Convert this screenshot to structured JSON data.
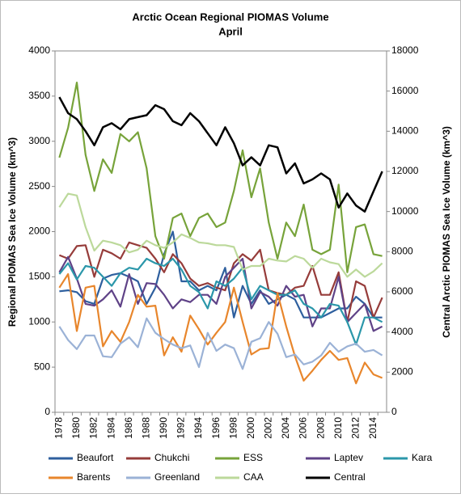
{
  "chart_data": {
    "type": "line",
    "title": "Arctic Ocean Regional PIOMAS Volume",
    "subtitle": "April",
    "y_label": "Regional PIOMAS Sea Ice Volume (km^3)",
    "y2_label": "Central Arctic PIOMAS Sea Ice Volume (km^3)",
    "categories": [
      "1978",
      null,
      "1980",
      null,
      "1982",
      null,
      "1984",
      null,
      "1986",
      null,
      "1988",
      null,
      "1990",
      null,
      "1992",
      null,
      "1994",
      null,
      "1996",
      null,
      "1998",
      null,
      "2000",
      null,
      "2002",
      null,
      "2004",
      null,
      "2006",
      null,
      "2008",
      null,
      "2010",
      null,
      "2012",
      null,
      "2014",
      null
    ],
    "ylim": [
      0,
      4000
    ],
    "yticks": [
      0,
      500,
      1000,
      1500,
      2000,
      2500,
      3000,
      3500,
      4000
    ],
    "y2lim": [
      0,
      18000
    ],
    "y2ticks": [
      0,
      2000,
      4000,
      6000,
      8000,
      10000,
      12000,
      14000,
      16000,
      18000
    ],
    "grid": false,
    "legend": "bottom",
    "series": [
      {
        "name": "Beaufort",
        "color": "#2e5f9e",
        "values": [
          1340,
          1350,
          1330,
          1230,
          1200,
          1480,
          1520,
          1540,
          1500,
          1450,
          1200,
          1380,
          1750,
          2000,
          1450,
          1450,
          1350,
          1400,
          1350,
          1600,
          1050,
          1400,
          1200,
          1350,
          1200,
          1250,
          1300,
          1250,
          1050,
          1050,
          1050,
          1100,
          1150,
          1150,
          1280,
          1200,
          1050,
          1050
        ]
      },
      {
        "name": "Chukchi",
        "color": "#963c3a",
        "values": [
          1740,
          1700,
          1840,
          1850,
          1500,
          1800,
          1760,
          1700,
          1880,
          1850,
          1820,
          1700,
          1550,
          1750,
          1650,
          1480,
          1400,
          1430,
          1380,
          1350,
          1650,
          1750,
          1680,
          1800,
          1350,
          1320,
          1300,
          1380,
          1400,
          1620,
          1300,
          1300,
          1550,
          1000,
          1450,
          1400,
          1050,
          1270
        ]
      },
      {
        "name": "ESS",
        "color": "#77a33a",
        "values": [
          2820,
          3150,
          3650,
          2850,
          2450,
          2800,
          2650,
          3080,
          3000,
          3100,
          2700,
          1950,
          1700,
          2150,
          2200,
          1950,
          2150,
          2200,
          2050,
          2100,
          2450,
          2900,
          2380,
          2700,
          2100,
          1700,
          2100,
          1950,
          2300,
          1800,
          1750,
          1800,
          2520,
          1550,
          2050,
          2080,
          1750,
          1730
        ]
      },
      {
        "name": "Laptev",
        "color": "#5f4287",
        "values": [
          1550,
          1720,
          1480,
          1200,
          1180,
          1250,
          1350,
          1170,
          1530,
          1200,
          1430,
          1420,
          1300,
          1150,
          1250,
          1220,
          1300,
          1300,
          1200,
          1500,
          1600,
          1700,
          1150,
          1330,
          1280,
          1180,
          1400,
          1280,
          1300,
          950,
          1150,
          1150,
          1500,
          1000,
          1100,
          1200,
          900,
          950
        ]
      },
      {
        "name": "Kara",
        "color": "#2b97aa",
        "values": [
          1530,
          1650,
          1470,
          1620,
          1600,
          1500,
          1400,
          1540,
          1600,
          1580,
          1700,
          1650,
          1620,
          1700,
          1580,
          1400,
          1330,
          1150,
          1450,
          1400,
          1480,
          1600,
          1250,
          1400,
          1350,
          1300,
          1300,
          1350,
          1200,
          1150,
          1050,
          1200,
          1180,
          1000,
          750,
          1050,
          1050,
          1000
        ]
      },
      {
        "name": "Barents",
        "color": "#e8862c",
        "values": [
          1380,
          1530,
          900,
          1380,
          1400,
          730,
          900,
          780,
          1000,
          1300,
          1170,
          1180,
          630,
          830,
          670,
          1070,
          920,
          750,
          880,
          1000,
          1380,
          1000,
          640,
          700,
          710,
          1320,
          950,
          620,
          350,
          460,
          580,
          680,
          580,
          600,
          320,
          550,
          420,
          380
        ]
      },
      {
        "name": "Greenland",
        "color": "#9bb2d6",
        "values": [
          950,
          800,
          700,
          850,
          850,
          620,
          610,
          760,
          830,
          720,
          1040,
          880,
          810,
          750,
          710,
          740,
          500,
          880,
          680,
          750,
          710,
          480,
          780,
          820,
          1000,
          870,
          610,
          640,
          530,
          560,
          630,
          770,
          670,
          730,
          760,
          670,
          690,
          630
        ]
      },
      {
        "name": "CAA",
        "color": "#bcd99b",
        "values": [
          2270,
          2420,
          2400,
          2050,
          1790,
          1900,
          1880,
          1850,
          1770,
          1800,
          1900,
          1850,
          1820,
          1880,
          1970,
          1930,
          1880,
          1870,
          1850,
          1850,
          1830,
          1580,
          1620,
          1620,
          1700,
          1680,
          1670,
          1730,
          1700,
          1600,
          1700,
          1660,
          1640,
          1500,
          1580,
          1500,
          1560,
          1650
        ]
      },
      {
        "name": "Central",
        "color": "#000000",
        "axis": "y2",
        "values": [
          15700,
          14900,
          14600,
          14000,
          13300,
          14200,
          14400,
          14100,
          14600,
          14700,
          14800,
          15300,
          15100,
          14500,
          14300,
          14900,
          14500,
          13900,
          13300,
          14200,
          13400,
          12300,
          12700,
          12300,
          13300,
          13200,
          11900,
          12400,
          11400,
          11600,
          11900,
          11600,
          10200,
          10900,
          10300,
          10000,
          11000,
          12000
        ]
      }
    ]
  }
}
